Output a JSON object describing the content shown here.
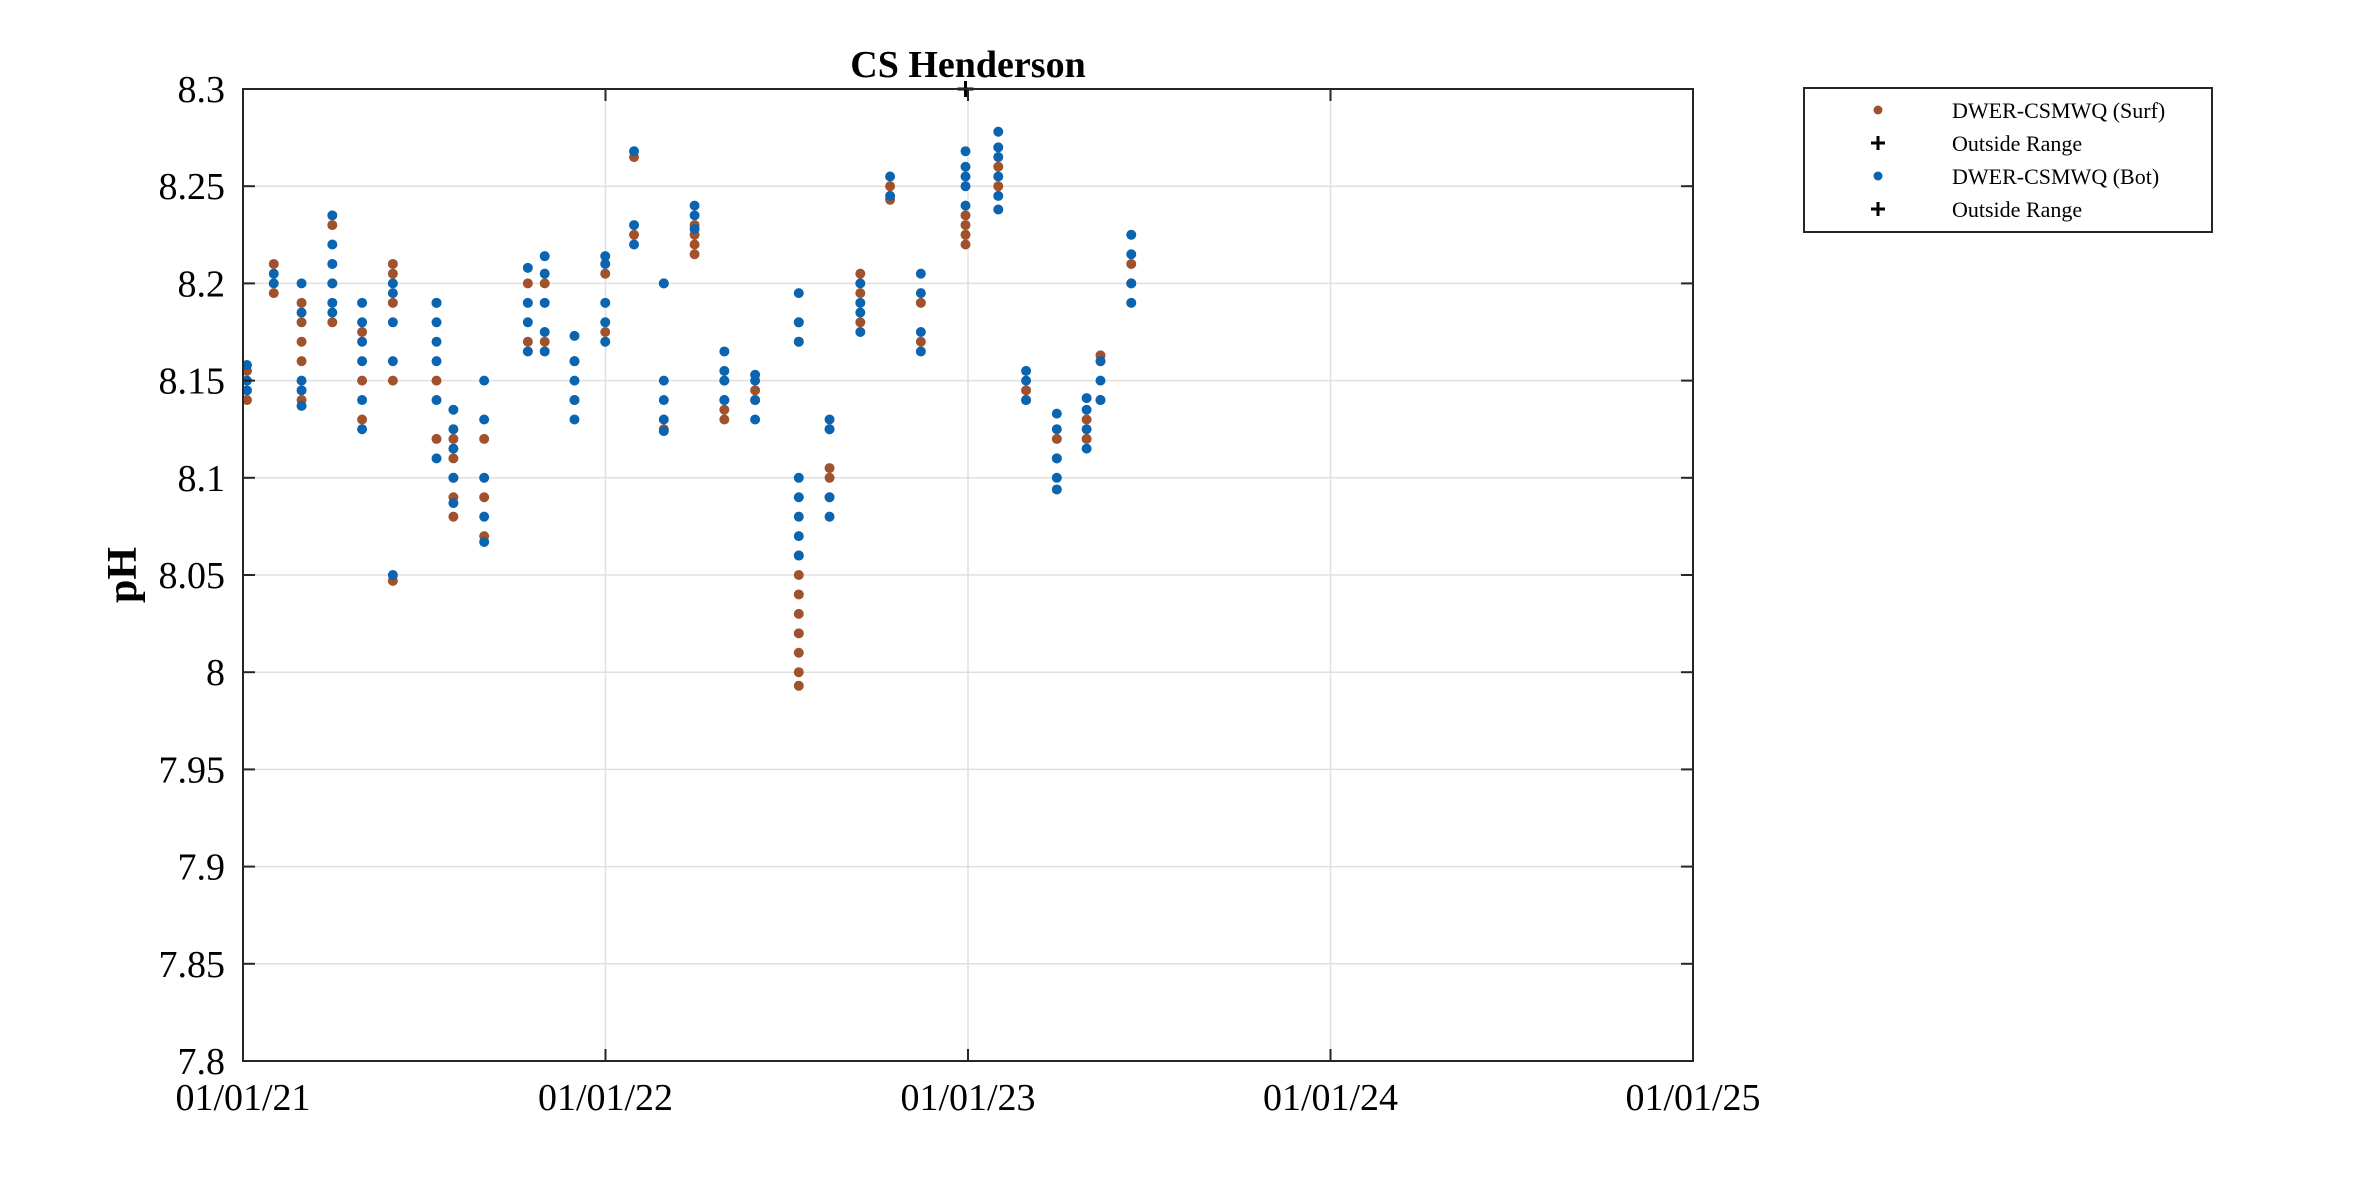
{
  "chart_data": {
    "type": "scatter",
    "title": "CS Henderson",
    "xlabel": "",
    "ylabel": "pH",
    "xlim": [
      "2021-01-01",
      "2025-01-01"
    ],
    "ylim": [
      7.8,
      8.3
    ],
    "x_ticks": [
      "01/01/21",
      "01/01/22",
      "01/01/23",
      "01/01/24",
      "01/01/25"
    ],
    "y_ticks": [
      "7.8",
      "7.85",
      "7.9",
      "7.95",
      "8",
      "8.05",
      "8.1",
      "8.15",
      "8.2",
      "8.25",
      "8.3"
    ],
    "grid": true,
    "legend_position": "outside-top-right",
    "legend": [
      {
        "label": "DWER-CSMWQ (Surf)",
        "marker": "dot",
        "color": "#a0522d"
      },
      {
        "label": "Outside Range",
        "marker": "plus",
        "color": "#000000"
      },
      {
        "label": "DWER-CSMWQ (Bot)",
        "marker": "dot",
        "color": "#0b64b0"
      },
      {
        "label": "Outside Range",
        "marker": "plus",
        "color": "#000000"
      }
    ],
    "series": [
      {
        "name": "DWER-CSMWQ (Surf)",
        "color": "#a0522d",
        "points": [
          [
            "2021-01-05",
            8.14
          ],
          [
            "2021-01-05",
            8.155
          ],
          [
            "2021-02-01",
            8.195
          ],
          [
            "2021-02-01",
            8.21
          ],
          [
            "2021-03-01",
            8.14
          ],
          [
            "2021-03-01",
            8.16
          ],
          [
            "2021-03-01",
            8.17
          ],
          [
            "2021-03-01",
            8.18
          ],
          [
            "2021-03-01",
            8.19
          ],
          [
            "2021-04-01",
            8.18
          ],
          [
            "2021-04-01",
            8.2
          ],
          [
            "2021-04-01",
            8.23
          ],
          [
            "2021-05-01",
            8.13
          ],
          [
            "2021-05-01",
            8.15
          ],
          [
            "2021-05-01",
            8.175
          ],
          [
            "2021-06-01",
            8.047
          ],
          [
            "2021-06-01",
            8.15
          ],
          [
            "2021-06-01",
            8.19
          ],
          [
            "2021-06-01",
            8.205
          ],
          [
            "2021-06-01",
            8.21
          ],
          [
            "2021-07-15",
            8.12
          ],
          [
            "2021-07-15",
            8.15
          ],
          [
            "2021-07-15",
            8.19
          ],
          [
            "2021-08-01",
            8.08
          ],
          [
            "2021-08-01",
            8.09
          ],
          [
            "2021-08-01",
            8.1
          ],
          [
            "2021-08-01",
            8.11
          ],
          [
            "2021-08-01",
            8.12
          ],
          [
            "2021-09-01",
            8.07
          ],
          [
            "2021-09-01",
            8.09
          ],
          [
            "2021-09-01",
            8.12
          ],
          [
            "2021-10-15",
            8.17
          ],
          [
            "2021-10-15",
            8.2
          ],
          [
            "2021-11-01",
            8.17
          ],
          [
            "2021-11-01",
            8.2
          ],
          [
            "2021-12-01",
            8.14
          ],
          [
            "2021-12-01",
            8.16
          ],
          [
            "2022-01-01",
            8.175
          ],
          [
            "2022-01-01",
            8.205
          ],
          [
            "2022-01-30",
            8.225
          ],
          [
            "2022-01-30",
            8.265
          ],
          [
            "2022-03-01",
            8.125
          ],
          [
            "2022-03-01",
            8.2
          ],
          [
            "2022-04-01",
            8.215
          ],
          [
            "2022-04-01",
            8.22
          ],
          [
            "2022-04-01",
            8.225
          ],
          [
            "2022-04-01",
            8.23
          ],
          [
            "2022-05-01",
            8.13
          ],
          [
            "2022-05-01",
            8.135
          ],
          [
            "2022-05-01",
            8.14
          ],
          [
            "2022-05-01",
            8.15
          ],
          [
            "2022-06-01",
            8.14
          ],
          [
            "2022-06-01",
            8.145
          ],
          [
            "2022-07-15",
            7.993
          ],
          [
            "2022-07-15",
            8.0
          ],
          [
            "2022-07-15",
            8.01
          ],
          [
            "2022-07-15",
            8.02
          ],
          [
            "2022-07-15",
            8.03
          ],
          [
            "2022-07-15",
            8.04
          ],
          [
            "2022-07-15",
            8.05
          ],
          [
            "2022-07-15",
            8.06
          ],
          [
            "2022-07-15",
            8.17
          ],
          [
            "2022-07-15",
            8.18
          ],
          [
            "2022-08-15",
            8.09
          ],
          [
            "2022-08-15",
            8.1
          ],
          [
            "2022-08-15",
            8.105
          ],
          [
            "2022-08-15",
            8.125
          ],
          [
            "2022-09-15",
            8.18
          ],
          [
            "2022-09-15",
            8.195
          ],
          [
            "2022-09-15",
            8.205
          ],
          [
            "2022-10-15",
            8.243
          ],
          [
            "2022-10-15",
            8.25
          ],
          [
            "2022-11-15",
            8.17
          ],
          [
            "2022-11-15",
            8.19
          ],
          [
            "2022-12-30",
            8.22
          ],
          [
            "2022-12-30",
            8.225
          ],
          [
            "2022-12-30",
            8.23
          ],
          [
            "2022-12-30",
            8.235
          ],
          [
            "2023-02-01",
            8.25
          ],
          [
            "2023-02-01",
            8.26
          ],
          [
            "2023-03-01",
            8.14
          ],
          [
            "2023-03-01",
            8.145
          ],
          [
            "2023-04-01",
            8.11
          ],
          [
            "2023-04-01",
            8.12
          ],
          [
            "2023-05-01",
            8.12
          ],
          [
            "2023-05-01",
            8.13
          ],
          [
            "2023-05-15",
            8.14
          ],
          [
            "2023-05-15",
            8.16
          ],
          [
            "2023-05-15",
            8.163
          ],
          [
            "2023-06-15",
            8.2
          ],
          [
            "2023-06-15",
            8.21
          ]
        ]
      },
      {
        "name": "DWER-CSMWQ (Bot)",
        "color": "#0b64b0",
        "points": [
          [
            "2021-01-05",
            8.145
          ],
          [
            "2021-01-05",
            8.15
          ],
          [
            "2021-01-05",
            8.158
          ],
          [
            "2021-02-01",
            8.2
          ],
          [
            "2021-02-01",
            8.205
          ],
          [
            "2021-03-01",
            8.137
          ],
          [
            "2021-03-01",
            8.145
          ],
          [
            "2021-03-01",
            8.15
          ],
          [
            "2021-03-01",
            8.185
          ],
          [
            "2021-03-01",
            8.2
          ],
          [
            "2021-04-01",
            8.185
          ],
          [
            "2021-04-01",
            8.19
          ],
          [
            "2021-04-01",
            8.2
          ],
          [
            "2021-04-01",
            8.21
          ],
          [
            "2021-04-01",
            8.22
          ],
          [
            "2021-04-01",
            8.235
          ],
          [
            "2021-05-01",
            8.125
          ],
          [
            "2021-05-01",
            8.14
          ],
          [
            "2021-05-01",
            8.16
          ],
          [
            "2021-05-01",
            8.17
          ],
          [
            "2021-05-01",
            8.18
          ],
          [
            "2021-05-01",
            8.19
          ],
          [
            "2021-06-01",
            8.05
          ],
          [
            "2021-06-01",
            8.16
          ],
          [
            "2021-06-01",
            8.18
          ],
          [
            "2021-06-01",
            8.195
          ],
          [
            "2021-06-01",
            8.2
          ],
          [
            "2021-07-15",
            8.11
          ],
          [
            "2021-07-15",
            8.14
          ],
          [
            "2021-07-15",
            8.16
          ],
          [
            "2021-07-15",
            8.17
          ],
          [
            "2021-07-15",
            8.18
          ],
          [
            "2021-07-15",
            8.19
          ],
          [
            "2021-08-01",
            8.087
          ],
          [
            "2021-08-01",
            8.1
          ],
          [
            "2021-08-01",
            8.115
          ],
          [
            "2021-08-01",
            8.125
          ],
          [
            "2021-08-01",
            8.135
          ],
          [
            "2021-09-01",
            8.067
          ],
          [
            "2021-09-01",
            8.08
          ],
          [
            "2021-09-01",
            8.1
          ],
          [
            "2021-09-01",
            8.13
          ],
          [
            "2021-09-01",
            8.15
          ],
          [
            "2021-10-15",
            8.165
          ],
          [
            "2021-10-15",
            8.18
          ],
          [
            "2021-10-15",
            8.19
          ],
          [
            "2021-10-15",
            8.208
          ],
          [
            "2021-11-01",
            8.165
          ],
          [
            "2021-11-01",
            8.175
          ],
          [
            "2021-11-01",
            8.19
          ],
          [
            "2021-11-01",
            8.205
          ],
          [
            "2021-11-01",
            8.214
          ],
          [
            "2021-12-01",
            8.13
          ],
          [
            "2021-12-01",
            8.14
          ],
          [
            "2021-12-01",
            8.15
          ],
          [
            "2021-12-01",
            8.16
          ],
          [
            "2021-12-01",
            8.173
          ],
          [
            "2022-01-01",
            8.17
          ],
          [
            "2022-01-01",
            8.18
          ],
          [
            "2022-01-01",
            8.19
          ],
          [
            "2022-01-01",
            8.21
          ],
          [
            "2022-01-01",
            8.214
          ],
          [
            "2022-01-30",
            8.22
          ],
          [
            "2022-01-30",
            8.23
          ],
          [
            "2022-01-30",
            8.268
          ],
          [
            "2022-03-01",
            8.124
          ],
          [
            "2022-03-01",
            8.13
          ],
          [
            "2022-03-01",
            8.14
          ],
          [
            "2022-03-01",
            8.15
          ],
          [
            "2022-03-01",
            8.2
          ],
          [
            "2022-04-01",
            8.228
          ],
          [
            "2022-04-01",
            8.235
          ],
          [
            "2022-04-01",
            8.24
          ],
          [
            "2022-05-01",
            8.14
          ],
          [
            "2022-05-01",
            8.15
          ],
          [
            "2022-05-01",
            8.155
          ],
          [
            "2022-05-01",
            8.165
          ],
          [
            "2022-06-01",
            8.13
          ],
          [
            "2022-06-01",
            8.14
          ],
          [
            "2022-06-01",
            8.15
          ],
          [
            "2022-06-01",
            8.153
          ],
          [
            "2022-07-15",
            8.06
          ],
          [
            "2022-07-15",
            8.07
          ],
          [
            "2022-07-15",
            8.08
          ],
          [
            "2022-07-15",
            8.09
          ],
          [
            "2022-07-15",
            8.1
          ],
          [
            "2022-07-15",
            8.17
          ],
          [
            "2022-07-15",
            8.18
          ],
          [
            "2022-07-15",
            8.195
          ],
          [
            "2022-08-15",
            8.08
          ],
          [
            "2022-08-15",
            8.09
          ],
          [
            "2022-08-15",
            8.125
          ],
          [
            "2022-08-15",
            8.13
          ],
          [
            "2022-09-15",
            8.175
          ],
          [
            "2022-09-15",
            8.185
          ],
          [
            "2022-09-15",
            8.19
          ],
          [
            "2022-09-15",
            8.2
          ],
          [
            "2022-10-15",
            8.245
          ],
          [
            "2022-10-15",
            8.255
          ],
          [
            "2022-11-15",
            8.165
          ],
          [
            "2022-11-15",
            8.175
          ],
          [
            "2022-11-15",
            8.195
          ],
          [
            "2022-11-15",
            8.205
          ],
          [
            "2022-12-30",
            8.24
          ],
          [
            "2022-12-30",
            8.25
          ],
          [
            "2022-12-30",
            8.255
          ],
          [
            "2022-12-30",
            8.26
          ],
          [
            "2022-12-30",
            8.268
          ],
          [
            "2023-02-01",
            8.238
          ],
          [
            "2023-02-01",
            8.245
          ],
          [
            "2023-02-01",
            8.255
          ],
          [
            "2023-02-01",
            8.265
          ],
          [
            "2023-02-01",
            8.27
          ],
          [
            "2023-02-01",
            8.278
          ],
          [
            "2023-03-01",
            8.14
          ],
          [
            "2023-03-01",
            8.15
          ],
          [
            "2023-03-01",
            8.155
          ],
          [
            "2023-04-01",
            8.094
          ],
          [
            "2023-04-01",
            8.1
          ],
          [
            "2023-04-01",
            8.11
          ],
          [
            "2023-04-01",
            8.125
          ],
          [
            "2023-04-01",
            8.133
          ],
          [
            "2023-05-01",
            8.115
          ],
          [
            "2023-05-01",
            8.125
          ],
          [
            "2023-05-01",
            8.135
          ],
          [
            "2023-05-01",
            8.141
          ],
          [
            "2023-05-15",
            8.14
          ],
          [
            "2023-05-15",
            8.15
          ],
          [
            "2023-05-15",
            8.16
          ],
          [
            "2023-06-15",
            8.19
          ],
          [
            "2023-06-15",
            8.2
          ],
          [
            "2023-06-15",
            8.215
          ],
          [
            "2023-06-15",
            8.225
          ]
        ]
      }
    ],
    "outside_range": [
      {
        "x": "2022-12-30",
        "y": 8.3
      }
    ]
  }
}
